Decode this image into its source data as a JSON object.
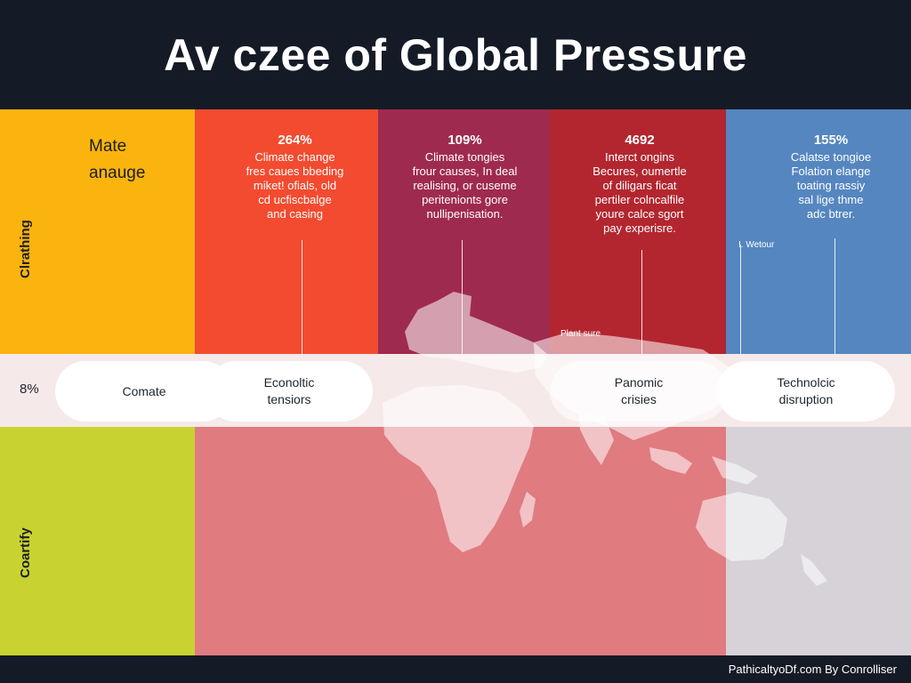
{
  "title": "Av czee of Global Pressure",
  "colors": {
    "header": "#151b26",
    "yellow": "#fbb40e",
    "orange_red": "#f34b30",
    "crimson": "#9f2a4f",
    "red": "#b3262f",
    "blue": "#5586c0",
    "lime": "#c8d332",
    "pink": "#e07b80",
    "grey": "#d6d2d8"
  },
  "side_labels": {
    "top": "Clrathing",
    "bottom": "Coartify"
  },
  "left_heading": {
    "line1": "Mate",
    "line2": "anauge"
  },
  "stats": [
    {
      "value": "264%",
      "text": "Climate change\nfres caues bbeding\nmiket! ofials, old\ncd ucfiscbalge\nand casing"
    },
    {
      "value": "109%",
      "text": "Climate tongies\nfrour causes, In deal\nrealising, or cuseme\nperitenionts gore\nnullipenisation."
    },
    {
      "value": "4692",
      "text": "Interct ongins\nBecures, oumertle\nof diligars ficat\npertiler colncalfile\nyoure calce sgort\npay experisre."
    },
    {
      "value": "155%",
      "text": "Calatse tongioe\nFolation elange\ntoating rassiy\nsal lige thme\nadc btrer."
    }
  ],
  "small_labels": {
    "plant": "Plant sure",
    "blue_marker": "I. Wetour"
  },
  "band_percent": "8%",
  "pills": [
    {
      "line1": "Comate",
      "line2": ""
    },
    {
      "line1": "Econoltic",
      "line2": "tensiors"
    },
    {
      "line1": "Panomic",
      "line2": "crisies"
    },
    {
      "line1": "Technolcic",
      "line2": "disruption"
    }
  ],
  "credit": "PathicaltyoDf.com By Conrolliser"
}
